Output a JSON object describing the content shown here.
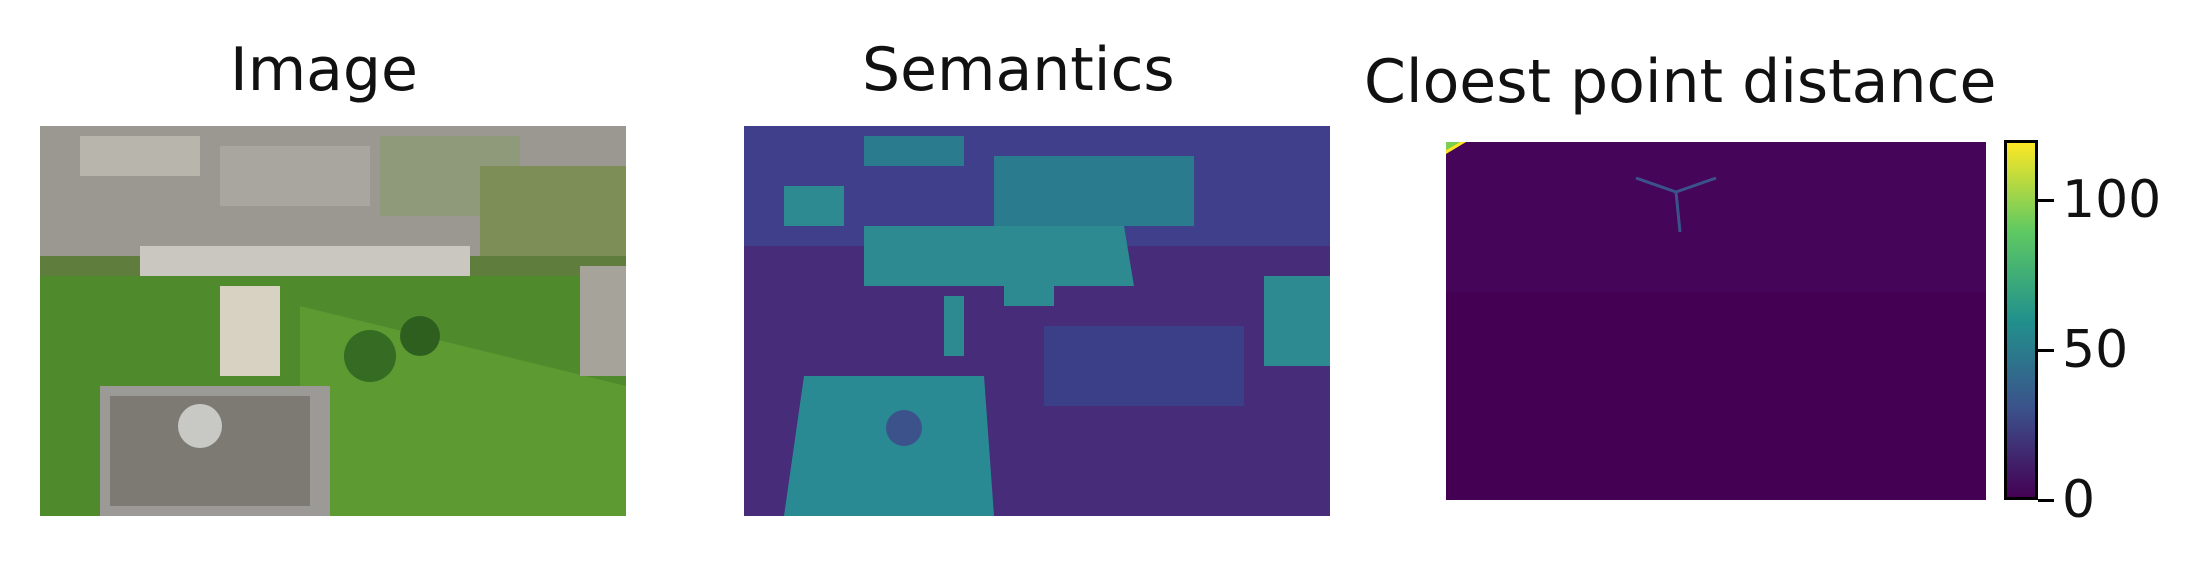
{
  "panels": [
    {
      "title": "Image"
    },
    {
      "title": "Semantics"
    },
    {
      "title": "Cloest point distance"
    }
  ],
  "colorbar": {
    "ticks": [
      {
        "value": 0,
        "label": "0"
      },
      {
        "value": 50,
        "label": "50"
      },
      {
        "value": 100,
        "label": "100"
      }
    ],
    "range": [
      0,
      120
    ],
    "colormap": "viridis"
  },
  "colors": {
    "viridis_low": "#440154",
    "viridis_mid": "#21918c",
    "viridis_high": "#fde725",
    "grass": "#4f8a2c",
    "roof": "#8a8a86"
  }
}
